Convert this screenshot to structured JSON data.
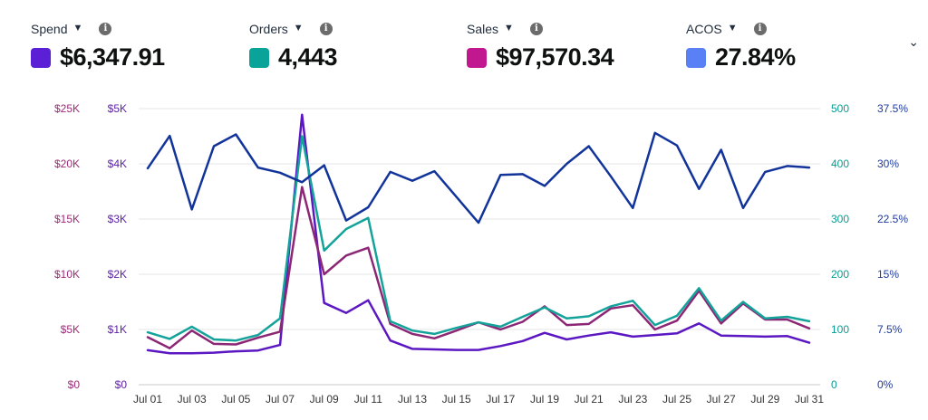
{
  "metrics": [
    {
      "label": "Spend",
      "value": "$6,347.91",
      "color": "#5b1fd6"
    },
    {
      "label": "Orders",
      "value": "4,443",
      "color": "#0aa39a"
    },
    {
      "label": "Sales",
      "value": "$97,570.34",
      "color": "#c2188f"
    },
    {
      "label": "ACOS",
      "value": "27.84%",
      "color": "#5a80f5"
    }
  ],
  "icons": {
    "dropdown": "chevron-down-icon",
    "info": "info-icon",
    "collapse": "chevron-down-icon"
  },
  "chart_data": {
    "type": "line",
    "x": [
      "Jul 01",
      "Jul 02",
      "Jul 03",
      "Jul 04",
      "Jul 05",
      "Jul 06",
      "Jul 07",
      "Jul 08",
      "Jul 09",
      "Jul 10",
      "Jul 11",
      "Jul 12",
      "Jul 13",
      "Jul 14",
      "Jul 15",
      "Jul 16",
      "Jul 17",
      "Jul 18",
      "Jul 19",
      "Jul 20",
      "Jul 21",
      "Jul 22",
      "Jul 23",
      "Jul 24",
      "Jul 25",
      "Jul 26",
      "Jul 27",
      "Jul 28",
      "Jul 29",
      "Jul 30",
      "Jul 31"
    ],
    "x_ticks": [
      "Jul 01",
      "Jul 03",
      "Jul 05",
      "Jul 07",
      "Jul 09",
      "Jul 11",
      "Jul 13",
      "Jul 15",
      "Jul 17",
      "Jul 19",
      "Jul 21",
      "Jul 23",
      "Jul 25",
      "Jul 27",
      "Jul 29",
      "Jul 31"
    ],
    "axes": [
      {
        "id": "sales",
        "side": "left-outer",
        "ticks": [
          "$0",
          "$5K",
          "$10K",
          "$15K",
          "$20K",
          "$25K"
        ],
        "range": [
          0,
          25000
        ],
        "color": "#9c2a78"
      },
      {
        "id": "spend",
        "side": "left-inner",
        "ticks": [
          "$0",
          "$1K",
          "$2K",
          "$3K",
          "$4K",
          "$5K"
        ],
        "range": [
          0,
          5000
        ],
        "color": "#5b1fa3"
      },
      {
        "id": "orders",
        "side": "right-inner",
        "ticks": [
          "0",
          "100",
          "200",
          "300",
          "400",
          "500"
        ],
        "range": [
          0,
          500
        ],
        "color": "#0a9a91"
      },
      {
        "id": "acos",
        "side": "right-outer",
        "ticks": [
          "0%",
          "7.5%",
          "15%",
          "22.5%",
          "30%",
          "37.5%"
        ],
        "range": [
          0,
          37.5
        ],
        "color": "#1d3aa0"
      }
    ],
    "series": [
      {
        "name": "Spend",
        "axis": "spend",
        "color": "#5b17c2",
        "values": [
          625,
          570,
          570,
          580,
          605,
          620,
          720,
          4890,
          1480,
          1300,
          1530,
          800,
          650,
          640,
          630,
          630,
          700,
          790,
          940,
          820,
          890,
          950,
          870,
          900,
          930,
          1110,
          890,
          880,
          870,
          880,
          760
        ]
      },
      {
        "name": "Sales",
        "axis": "sales",
        "color": "#8c2775",
        "values": [
          4300,
          3300,
          4900,
          3700,
          3650,
          4250,
          4800,
          17900,
          10000,
          11700,
          12400,
          5500,
          4600,
          4200,
          4900,
          5650,
          5000,
          5700,
          7100,
          5400,
          5500,
          6900,
          7200,
          5000,
          5800,
          8500,
          5550,
          7350,
          5900,
          5900,
          5100
        ]
      },
      {
        "name": "Orders",
        "axis": "orders",
        "color": "#14a39a",
        "values": [
          95,
          83,
          105,
          82,
          80,
          90,
          120,
          450,
          243,
          282,
          302,
          115,
          98,
          92,
          103,
          113,
          105,
          123,
          140,
          120,
          124,
          142,
          152,
          108,
          125,
          175,
          116,
          150,
          120,
          123,
          115
        ]
      },
      {
        "name": "ACOS",
        "axis": "acos",
        "color": "#12349a",
        "values": [
          29.4,
          33.8,
          23.8,
          32.4,
          34.0,
          29.5,
          28.8,
          27.5,
          29.8,
          22.3,
          24.1,
          28.9,
          27.7,
          29.0,
          25.5,
          22.0,
          28.5,
          28.6,
          27.0,
          30.0,
          32.4,
          28.3,
          24.0,
          34.2,
          32.5,
          26.6,
          31.9,
          24.0,
          28.9,
          29.7,
          29.5
        ]
      }
    ],
    "grid": true
  }
}
